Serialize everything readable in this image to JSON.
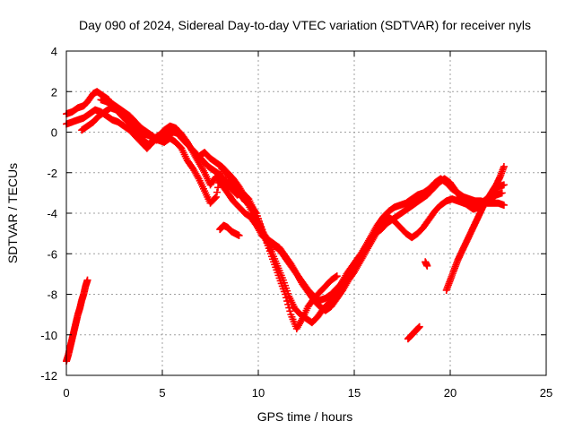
{
  "chart_data": {
    "type": "scatter",
    "title": "Day 090 of 2024, Sidereal Day-to-day VTEC variation (SDTVAR) for receiver nyls",
    "xlabel": "GPS time / hours",
    "ylabel": "SDTVAR / TECUs",
    "xlim": [
      0,
      25
    ],
    "ylim": [
      -12,
      4
    ],
    "xticks": [
      0,
      5,
      10,
      15,
      20,
      25
    ],
    "yticks": [
      -12,
      -10,
      -8,
      -6,
      -4,
      -2,
      0,
      2,
      4
    ],
    "grid": true,
    "marker": "plus",
    "color": "#ff0000",
    "series": [
      {
        "points": [
          [
            0,
            0.9
          ],
          [
            0.3,
            1.0
          ],
          [
            0.6,
            1.2
          ],
          [
            0.9,
            1.3
          ],
          [
            1.1,
            1.5
          ],
          [
            1.4,
            1.9
          ],
          [
            1.6,
            2.0
          ],
          [
            1.9,
            1.8
          ],
          [
            2.2,
            1.6
          ],
          [
            2.5,
            1.2
          ],
          [
            2.8,
            0.9
          ],
          [
            3.0,
            0.7
          ],
          [
            3.3,
            0.4
          ],
          [
            3.6,
            0.2
          ],
          [
            3.8,
            -0.1
          ],
          [
            4.0,
            -0.4
          ],
          [
            4.3,
            -0.6
          ],
          [
            4.6,
            -0.3
          ],
          [
            4.9,
            -0.1
          ],
          [
            5.2,
            0.0
          ],
          [
            5.5,
            0.1
          ],
          [
            5.8,
            0.0
          ],
          [
            6.0,
            -0.3
          ],
          [
            6.3,
            -0.6
          ],
          [
            6.6,
            -0.9
          ],
          [
            6.9,
            -1.2
          ],
          [
            7.2,
            -1.0
          ],
          [
            7.5,
            -1.3
          ],
          [
            7.8,
            -1.5
          ],
          [
            8.1,
            -1.7
          ],
          [
            8.4,
            -2.0
          ],
          [
            8.7,
            -2.3
          ],
          [
            9.0,
            -2.7
          ],
          [
            9.3,
            -3.2
          ],
          [
            9.6,
            -3.8
          ],
          [
            9.9,
            -4.4
          ],
          [
            10.2,
            -4.9
          ],
          [
            10.5,
            -5.3
          ],
          [
            10.8,
            -5.5
          ],
          [
            11.1,
            -5.7
          ],
          [
            11.4,
            -6.1
          ],
          [
            11.7,
            -6.5
          ],
          [
            12.0,
            -7.0
          ],
          [
            12.3,
            -7.4
          ],
          [
            12.6,
            -7.8
          ],
          [
            12.9,
            -8.1
          ],
          [
            13.2,
            -8.3
          ],
          [
            13.5,
            -8.2
          ],
          [
            13.8,
            -8.0
          ],
          [
            14.1,
            -7.7
          ],
          [
            14.4,
            -7.4
          ],
          [
            14.7,
            -7.0
          ],
          [
            15.0,
            -6.6
          ],
          [
            15.3,
            -6.1
          ],
          [
            15.6,
            -5.6
          ],
          [
            15.9,
            -5.1
          ],
          [
            16.2,
            -4.6
          ],
          [
            16.5,
            -4.2
          ],
          [
            16.8,
            -3.9
          ],
          [
            17.1,
            -3.7
          ],
          [
            17.4,
            -3.6
          ],
          [
            17.7,
            -3.5
          ],
          [
            18.0,
            -3.3
          ],
          [
            18.3,
            -3.1
          ],
          [
            18.6,
            -3.0
          ],
          [
            18.9,
            -2.8
          ],
          [
            19.2,
            -2.5
          ],
          [
            19.5,
            -2.3
          ],
          [
            19.8,
            -2.5
          ],
          [
            20.1,
            -2.8
          ],
          [
            20.4,
            -3.0
          ],
          [
            20.7,
            -3.2
          ],
          [
            21.0,
            -3.3
          ],
          [
            21.3,
            -3.4
          ],
          [
            21.6,
            -3.4
          ],
          [
            21.9,
            -3.5
          ],
          [
            22.2,
            -3.5
          ],
          [
            22.5,
            -3.5
          ],
          [
            22.8,
            -3.6
          ]
        ]
      },
      {
        "points": [
          [
            0,
            0.4
          ],
          [
            0.3,
            0.5
          ],
          [
            0.6,
            0.6
          ],
          [
            0.9,
            0.7
          ],
          [
            1.2,
            0.9
          ],
          [
            1.5,
            1.1
          ],
          [
            1.8,
            1.0
          ],
          [
            2.1,
            0.8
          ],
          [
            2.4,
            0.6
          ],
          [
            2.7,
            0.5
          ],
          [
            3.0,
            0.3
          ],
          [
            3.3,
            0.1
          ],
          [
            3.6,
            -0.2
          ],
          [
            3.9,
            -0.5
          ],
          [
            4.2,
            -0.8
          ],
          [
            4.5,
            -0.5
          ],
          [
            4.8,
            -0.2
          ],
          [
            5.1,
            0.1
          ],
          [
            5.4,
            0.3
          ],
          [
            5.7,
            0.2
          ],
          [
            6.0,
            -0.1
          ],
          [
            6.3,
            -0.5
          ],
          [
            6.6,
            -1.0
          ],
          [
            6.9,
            -1.5
          ],
          [
            7.2,
            -2.0
          ],
          [
            7.5,
            -2.6
          ],
          [
            7.8,
            -2.2
          ],
          [
            8.1,
            -2.6
          ],
          [
            8.4,
            -3.0
          ],
          [
            8.7,
            -3.4
          ],
          [
            9.0,
            -3.7
          ],
          [
            9.3,
            -4.0
          ],
          [
            9.6,
            -4.2
          ],
          [
            9.9,
            -4.6
          ],
          [
            10.2,
            -5.1
          ],
          [
            10.5,
            -5.4
          ],
          [
            10.8,
            -5.6
          ],
          [
            11.1,
            -5.8
          ],
          [
            11.4,
            -6.2
          ],
          [
            11.7,
            -6.6
          ],
          [
            12.0,
            -7.0
          ],
          [
            12.3,
            -7.5
          ],
          [
            12.6,
            -7.9
          ],
          [
            12.9,
            -8.3
          ],
          [
            13.2,
            -8.6
          ],
          [
            13.5,
            -8.8
          ],
          [
            13.8,
            -8.6
          ],
          [
            14.1,
            -8.2
          ],
          [
            14.4,
            -7.8
          ],
          [
            14.7,
            -7.3
          ],
          [
            15.0,
            -6.9
          ],
          [
            15.3,
            -6.4
          ],
          [
            15.6,
            -5.9
          ],
          [
            15.9,
            -5.4
          ],
          [
            16.2,
            -4.9
          ],
          [
            16.5,
            -4.5
          ],
          [
            16.8,
            -4.2
          ],
          [
            17.1,
            -4.4
          ],
          [
            17.4,
            -4.7
          ],
          [
            17.7,
            -5.0
          ],
          [
            18.0,
            -5.2
          ],
          [
            18.3,
            -5.0
          ],
          [
            18.6,
            -4.7
          ],
          [
            18.9,
            -4.3
          ],
          [
            19.2,
            -3.9
          ],
          [
            19.5,
            -3.6
          ],
          [
            19.8,
            -3.4
          ],
          [
            20.1,
            -3.3
          ],
          [
            20.4,
            -3.4
          ],
          [
            20.7,
            -3.5
          ],
          [
            21.0,
            -3.6
          ],
          [
            21.3,
            -3.6
          ],
          [
            21.6,
            -3.5
          ],
          [
            21.9,
            -3.3
          ],
          [
            22.2,
            -3.0
          ],
          [
            22.5,
            -2.7
          ],
          [
            22.8,
            -2.6
          ]
        ]
      },
      {
        "points": [
          [
            0.8,
            0.1
          ],
          [
            1.1,
            0.3
          ],
          [
            1.4,
            0.5
          ],
          [
            1.7,
            0.8
          ],
          [
            2.0,
            1.0
          ],
          [
            2.3,
            1.2
          ],
          [
            2.6,
            1.1
          ],
          [
            2.9,
            0.9
          ],
          [
            3.2,
            0.7
          ],
          [
            3.5,
            0.5
          ],
          [
            3.8,
            0.2
          ],
          [
            4.1,
            -0.1
          ],
          [
            4.4,
            -0.2
          ],
          [
            4.7,
            -0.4
          ],
          [
            5.0,
            -0.3
          ],
          [
            5.3,
            -0.1
          ],
          [
            5.6,
            0.0
          ],
          [
            5.9,
            -0.1
          ],
          [
            6.2,
            -0.4
          ],
          [
            6.5,
            -0.8
          ],
          [
            6.8,
            -1.1
          ],
          [
            7.1,
            -1.4
          ],
          [
            7.4,
            -1.7
          ],
          [
            7.7,
            -1.9
          ],
          [
            8.0,
            -2.1
          ],
          [
            8.3,
            -2.4
          ],
          [
            8.6,
            -2.8
          ],
          [
            8.9,
            -3.1
          ],
          [
            9.2,
            -3.0
          ],
          [
            9.5,
            -3.3
          ],
          [
            9.8,
            -3.9
          ],
          [
            10.1,
            -4.6
          ],
          [
            10.4,
            -5.3
          ],
          [
            10.7,
            -5.9
          ],
          [
            11.0,
            -6.6
          ],
          [
            11.3,
            -7.3
          ],
          [
            11.6,
            -8.1
          ],
          [
            11.9,
            -8.7
          ],
          [
            12.2,
            -9.0
          ],
          [
            12.5,
            -9.2
          ],
          [
            12.8,
            -9.4
          ],
          [
            13.1,
            -9.1
          ],
          [
            13.4,
            -8.7
          ],
          [
            13.7,
            -8.4
          ],
          [
            14.0,
            -8.0
          ],
          [
            14.3,
            -7.5
          ],
          [
            14.6,
            -7.0
          ],
          [
            14.9,
            -6.6
          ],
          [
            15.2,
            -6.2
          ],
          [
            15.5,
            -5.8
          ],
          [
            15.8,
            -5.4
          ],
          [
            16.1,
            -5.0
          ],
          [
            16.4,
            -4.8
          ],
          [
            16.7,
            -4.5
          ],
          [
            17.0,
            -4.3
          ],
          [
            17.3,
            -4.1
          ],
          [
            17.6,
            -3.9
          ],
          [
            17.9,
            -3.7
          ],
          [
            18.2,
            -3.5
          ],
          [
            18.5,
            -3.3
          ],
          [
            18.8,
            -3.1
          ],
          [
            19.1,
            -2.8
          ],
          [
            19.4,
            -2.5
          ],
          [
            19.7,
            -2.3
          ],
          [
            20.0,
            -2.5
          ],
          [
            20.3,
            -2.9
          ],
          [
            20.6,
            -3.3
          ],
          [
            20.9,
            -3.6
          ],
          [
            21.2,
            -3.8
          ],
          [
            21.5,
            -3.7
          ],
          [
            21.8,
            -3.5
          ],
          [
            22.1,
            -3.3
          ],
          [
            22.4,
            -3.1
          ],
          [
            22.7,
            -3.0
          ]
        ]
      },
      {
        "points": [
          [
            1.8,
            1.6
          ],
          [
            2.1,
            1.5
          ],
          [
            2.4,
            1.4
          ],
          [
            2.7,
            1.2
          ],
          [
            3.0,
            1.0
          ],
          [
            3.3,
            0.8
          ],
          [
            3.6,
            0.5
          ],
          [
            3.9,
            0.2
          ],
          [
            4.2,
            0.0
          ],
          [
            4.5,
            -0.2
          ],
          [
            4.8,
            -0.4
          ],
          [
            5.1,
            -0.5
          ],
          [
            5.4,
            -0.3
          ],
          [
            5.7,
            -0.5
          ],
          [
            6.0,
            -0.8
          ],
          [
            6.3,
            -1.4
          ],
          [
            6.6,
            -1.8
          ],
          [
            6.9,
            -2.3
          ],
          [
            7.2,
            -2.9
          ],
          [
            7.5,
            -3.5
          ],
          [
            7.8,
            -3.2
          ],
          [
            8.1,
            -1.8
          ],
          [
            8.4,
            -2.1
          ],
          [
            8.7,
            -2.6
          ],
          [
            9.0,
            -3.0
          ],
          [
            9.3,
            -3.4
          ],
          [
            9.6,
            -3.6
          ],
          [
            9.9,
            -4.0
          ],
          [
            10.2,
            -4.8
          ],
          [
            10.5,
            -5.6
          ],
          [
            10.8,
            -6.4
          ],
          [
            11.1,
            -7.2
          ],
          [
            11.4,
            -8.0
          ],
          [
            11.7,
            -9.0
          ],
          [
            12.0,
            -9.7
          ],
          [
            12.3,
            -9.2
          ],
          [
            12.6,
            -8.6
          ],
          [
            12.9,
            -8.2
          ],
          [
            13.2,
            -7.9
          ],
          [
            13.5,
            -7.6
          ],
          [
            13.8,
            -7.3
          ],
          [
            14.1,
            -7.1
          ]
        ]
      },
      {
        "points": [
          [
            8.0,
            -4.8
          ],
          [
            8.2,
            -4.6
          ],
          [
            8.4,
            -4.7
          ],
          [
            8.6,
            -4.9
          ],
          [
            8.8,
            -5.0
          ],
          [
            9.0,
            -5.1
          ]
        ]
      },
      {
        "points": [
          [
            0.0,
            -11.3
          ],
          [
            0.1,
            -11.0
          ],
          [
            0.2,
            -10.6
          ],
          [
            0.3,
            -10.2
          ],
          [
            0.4,
            -9.8
          ],
          [
            0.5,
            -9.4
          ],
          [
            0.6,
            -9.0
          ],
          [
            0.7,
            -8.7
          ],
          [
            0.8,
            -8.3
          ],
          [
            0.9,
            -8.0
          ],
          [
            1.0,
            -7.6
          ],
          [
            1.1,
            -7.3
          ]
        ]
      },
      {
        "points": [
          [
            17.8,
            -10.2
          ],
          [
            18.0,
            -10.0
          ],
          [
            18.2,
            -9.8
          ],
          [
            18.4,
            -9.6
          ]
        ]
      },
      {
        "points": [
          [
            18.7,
            -6.4
          ],
          [
            18.8,
            -6.6
          ]
        ]
      },
      {
        "points": [
          [
            19.8,
            -7.8
          ],
          [
            20.0,
            -7.3
          ],
          [
            20.2,
            -6.8
          ],
          [
            20.4,
            -6.3
          ],
          [
            20.6,
            -5.9
          ],
          [
            20.8,
            -5.5
          ],
          [
            21.0,
            -5.1
          ],
          [
            21.2,
            -4.7
          ],
          [
            21.4,
            -4.3
          ],
          [
            21.6,
            -3.9
          ],
          [
            21.8,
            -3.5
          ],
          [
            22.0,
            -3.2
          ],
          [
            22.2,
            -2.9
          ],
          [
            22.4,
            -2.6
          ],
          [
            22.6,
            -2.2
          ],
          [
            22.8,
            -1.7
          ]
        ]
      }
    ]
  }
}
